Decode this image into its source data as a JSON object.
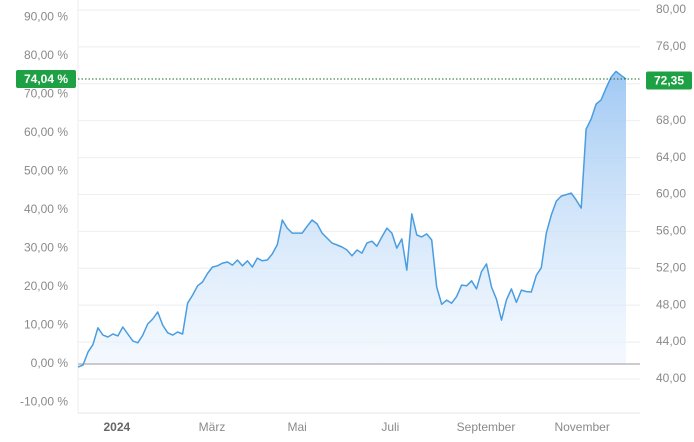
{
  "chart_data": {
    "type": "area-line",
    "values": [
      -0.8,
      -0.3,
      3.1,
      5,
      9.4,
      7.5,
      7,
      7.8,
      7.3,
      9.6,
      7.8,
      6,
      5.5,
      7.5,
      10.4,
      11.7,
      13.5,
      10.1,
      8.1,
      7.5,
      8.3,
      7.8,
      15.8,
      17.9,
      20.3,
      21.3,
      23.5,
      25.2,
      25.5,
      26.2,
      26.5,
      25.7,
      27,
      25.5,
      26.8,
      25.2,
      27.5,
      26.8,
      27,
      28.6,
      31,
      37.4,
      35.3,
      34,
      34,
      34,
      35.8,
      37.4,
      36.4,
      34,
      32.7,
      31.4,
      30.9,
      30.4,
      29.6,
      28.1,
      29.6,
      28.8,
      31.4,
      31.9,
      30.6,
      33,
      35.3,
      34,
      30.1,
      32.5,
      24.4,
      39,
      33.5,
      33,
      33.8,
      32.2,
      20,
      15.5,
      16.6,
      15.8,
      17.5,
      20.5,
      20.3,
      21.6,
      19.5,
      24,
      26,
      20,
      16.8,
      11.4,
      16.6,
      19.5,
      16,
      19.2,
      18.8,
      18.7,
      23,
      25,
      34,
      38.7,
      42.3,
      43.6,
      44,
      44.4,
      42.6,
      40.5,
      61,
      63.6,
      67.5,
      68.6,
      71.7,
      74.5,
      76,
      75,
      74.04
    ],
    "color": "#4a9de0",
    "xlim": [
      0,
      110
    ],
    "xticks": [
      {
        "value": 7.8,
        "label": "2024"
      },
      {
        "value": 26.9,
        "label": "März"
      },
      {
        "value": 44,
        "label": "Mai"
      },
      {
        "value": 62.7,
        "label": "Juli"
      },
      {
        "value": 81.9,
        "label": "September"
      },
      {
        "value": 101.2,
        "label": "November"
      }
    ],
    "ylim": [
      -12.47,
      93.25
    ],
    "yticks": [
      {
        "value": -10,
        "label": "-10,00 %"
      },
      {
        "value": 0,
        "label": "0,00 %"
      },
      {
        "value": 10,
        "label": "10,00 %"
      },
      {
        "value": 20,
        "label": "20,00 %"
      },
      {
        "value": 30,
        "label": "30,00 %"
      },
      {
        "value": 40,
        "label": "40,00 %"
      },
      {
        "value": 50,
        "label": "50,00 %"
      },
      {
        "value": 60,
        "label": "60,00 %"
      },
      {
        "value": 70,
        "label": "70,00 %"
      },
      {
        "value": 80,
        "label": "80,00 %"
      },
      {
        "value": 90,
        "label": "90,00 %"
      }
    ],
    "y2lim": [
      36.42,
      80.54
    ],
    "y2ticks": [
      {
        "value": 40,
        "label": "40,00"
      },
      {
        "value": 44,
        "label": "44,00"
      },
      {
        "value": 48,
        "label": "48,00"
      },
      {
        "value": 52,
        "label": "52,00"
      },
      {
        "value": 56,
        "label": "56,00"
      },
      {
        "value": 60,
        "label": "60,00"
      },
      {
        "value": 64,
        "label": "64,00"
      },
      {
        "value": 68,
        "label": "68,00"
      },
      {
        "value": 72,
        "label": "72,00"
      },
      {
        "value": 76,
        "label": "76,00"
      },
      {
        "value": 80,
        "label": "80,00"
      }
    ],
    "markers": [
      {
        "axis": "y",
        "value": 74.04,
        "label": "74,04 %"
      },
      {
        "axis": "y2",
        "value": 72.35,
        "label": "72,35"
      }
    ],
    "marker_color": "#1ea044",
    "grid": true
  }
}
